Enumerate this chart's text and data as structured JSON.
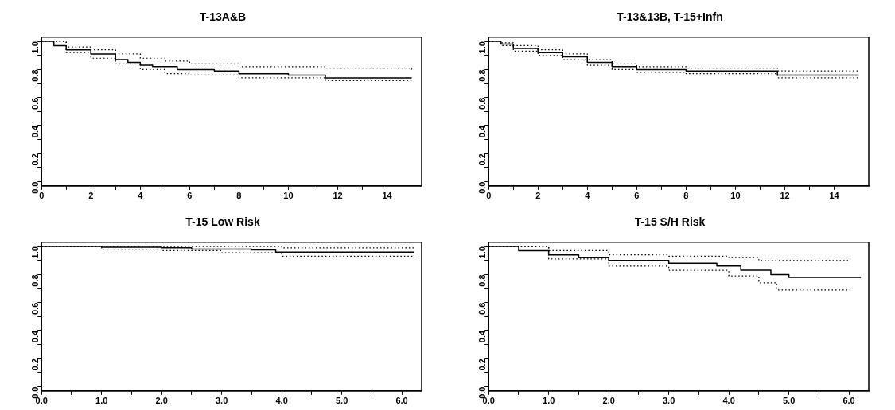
{
  "chart_data": [
    {
      "type": "step",
      "title": "T-13A&B",
      "xlim": [
        0,
        15.4
      ],
      "ylim": [
        -0.03,
        1.03
      ],
      "xticks": [
        0,
        {
          "value": 1,
          "label": null
        },
        2,
        {
          "value": 3,
          "label": null
        },
        4,
        {
          "value": 5,
          "label": null
        },
        6,
        {
          "value": 7,
          "label": null
        },
        8,
        {
          "value": 9,
          "label": null
        },
        10,
        {
          "value": 11,
          "label": null
        },
        12,
        {
          "value": 13,
          "label": null
        },
        14
      ],
      "yticks": [
        {
          "value": 0,
          "label": "0.0"
        },
        {
          "value": 0.1,
          "label": null
        },
        {
          "value": 0.2,
          "label": "0.2"
        },
        {
          "value": 0.3,
          "label": null
        },
        {
          "value": 0.4,
          "label": "0.4"
        },
        {
          "value": 0.5,
          "label": null
        },
        {
          "value": 0.6,
          "label": "0.6"
        },
        {
          "value": 0.7,
          "label": null
        },
        {
          "value": 0.8,
          "label": "0.8"
        },
        {
          "value": 0.9,
          "label": null
        },
        {
          "value": 1,
          "label": "1.0"
        }
      ],
      "series": [
        {
          "color": "#000000",
          "line_style": "solid",
          "x": [
            0,
            0.5,
            1,
            2,
            3,
            3.5,
            4,
            4.5,
            5.5,
            7,
            8,
            10,
            11.5,
            15
          ],
          "values": [
            1,
            0.97,
            0.94,
            0.91,
            0.87,
            0.85,
            0.83,
            0.82,
            0.8,
            0.79,
            0.77,
            0.76,
            0.74,
            0.74
          ]
        },
        {
          "color": "#000000",
          "line_style": "dotted",
          "x": [
            0,
            1,
            2,
            3,
            4,
            5,
            6,
            8,
            11.5,
            15
          ],
          "values": [
            1,
            0.96,
            0.94,
            0.91,
            0.88,
            0.86,
            0.84,
            0.82,
            0.81,
            0.8
          ]
        },
        {
          "color": "#000000",
          "line_style": "dotted",
          "x": [
            0,
            1,
            2,
            3,
            4,
            5,
            6,
            8,
            11.5,
            15
          ],
          "values": [
            1,
            0.92,
            0.88,
            0.84,
            0.8,
            0.77,
            0.76,
            0.74,
            0.72,
            0.71
          ]
        }
      ]
    },
    {
      "type": "step",
      "title": "T-13&13B, T-15+Infn",
      "xlim": [
        0,
        15.4
      ],
      "ylim": [
        -0.03,
        1.03
      ],
      "xticks": [
        0,
        {
          "value": 1,
          "label": null
        },
        2,
        {
          "value": 3,
          "label": null
        },
        4,
        {
          "value": 5,
          "label": null
        },
        6,
        {
          "value": 7,
          "label": null
        },
        8,
        {
          "value": 9,
          "label": null
        },
        10,
        {
          "value": 11,
          "label": null
        },
        12,
        {
          "value": 13,
          "label": null
        },
        14
      ],
      "yticks": [
        {
          "value": 0,
          "label": "0.0"
        },
        {
          "value": 0.1,
          "label": null
        },
        {
          "value": 0.2,
          "label": "0.2"
        },
        {
          "value": 0.3,
          "label": null
        },
        {
          "value": 0.4,
          "label": "0.4"
        },
        {
          "value": 0.5,
          "label": null
        },
        {
          "value": 0.6,
          "label": "0.6"
        },
        {
          "value": 0.7,
          "label": null
        },
        {
          "value": 0.8,
          "label": "0.8"
        },
        {
          "value": 0.9,
          "label": null
        },
        {
          "value": 1,
          "label": "1.0"
        }
      ],
      "series": [
        {
          "color": "#000000",
          "line_style": "solid",
          "x": [
            0,
            0.5,
            1,
            2,
            3,
            4,
            5,
            6,
            8,
            11.7,
            15
          ],
          "values": [
            1,
            0.98,
            0.95,
            0.92,
            0.89,
            0.85,
            0.82,
            0.8,
            0.79,
            0.76,
            0.76
          ]
        },
        {
          "color": "#000000",
          "line_style": "dotted",
          "x": [
            0,
            0.5,
            1,
            2,
            3,
            4,
            5,
            6,
            8,
            11.7,
            15
          ],
          "values": [
            1,
            0.99,
            0.97,
            0.94,
            0.91,
            0.87,
            0.84,
            0.82,
            0.81,
            0.79,
            0.79
          ]
        },
        {
          "color": "#000000",
          "line_style": "dotted",
          "x": [
            0,
            0.5,
            1,
            2,
            3,
            4,
            5,
            6,
            8,
            11.7,
            15
          ],
          "values": [
            1,
            0.97,
            0.93,
            0.9,
            0.87,
            0.83,
            0.8,
            0.78,
            0.77,
            0.74,
            0.74
          ]
        }
      ]
    },
    {
      "type": "step",
      "title": "T-15 Low Risk",
      "xlim": [
        0,
        6.33
      ],
      "ylim": [
        -0.03,
        1.03
      ],
      "xticks": [
        {
          "value": 0,
          "label": "0.0"
        },
        {
          "value": 0.5,
          "label": null
        },
        {
          "value": 1,
          "label": "1.0"
        },
        {
          "value": 1.5,
          "label": null
        },
        {
          "value": 2,
          "label": "2.0"
        },
        {
          "value": 2.5,
          "label": null
        },
        {
          "value": 3,
          "label": "3.0"
        },
        {
          "value": 3.5,
          "label": null
        },
        {
          "value": 4,
          "label": "4.0"
        },
        {
          "value": 4.5,
          "label": null
        },
        {
          "value": 5,
          "label": "5.0"
        },
        {
          "value": 5.5,
          "label": null
        },
        {
          "value": 6,
          "label": "6.0"
        }
      ],
      "yticks": [
        {
          "value": 0,
          "label": "0.0"
        },
        {
          "value": 0.1,
          "label": null
        },
        {
          "value": 0.2,
          "label": "0.2"
        },
        {
          "value": 0.3,
          "label": null
        },
        {
          "value": 0.4,
          "label": "0.4"
        },
        {
          "value": 0.5,
          "label": null
        },
        {
          "value": 0.6,
          "label": "0.6"
        },
        {
          "value": 0.7,
          "label": null
        },
        {
          "value": 0.8,
          "label": "0.8"
        },
        {
          "value": 0.9,
          "label": null
        },
        {
          "value": 1,
          "label": "1.0"
        }
      ],
      "series": [
        {
          "color": "#000000",
          "line_style": "solid",
          "x": [
            0,
            1,
            2,
            2.5,
            3.5,
            3.9,
            6.2
          ],
          "values": [
            1,
            0.995,
            0.99,
            0.98,
            0.975,
            0.96,
            0.96
          ]
        },
        {
          "color": "#000000",
          "line_style": "dotted",
          "x": [
            0,
            2,
            4,
            6.2
          ],
          "values": [
            1,
            1,
            0.99,
            0.99
          ]
        },
        {
          "color": "#000000",
          "line_style": "dotted",
          "x": [
            0,
            1,
            2,
            3,
            4,
            6.2
          ],
          "values": [
            1,
            0.98,
            0.97,
            0.955,
            0.93,
            0.92
          ]
        }
      ]
    },
    {
      "type": "step",
      "title": "T-15 S/H Risk",
      "xlim": [
        0,
        6.33
      ],
      "ylim": [
        -0.03,
        1.03
      ],
      "xticks": [
        {
          "value": 0,
          "label": "0.0"
        },
        {
          "value": 0.5,
          "label": null
        },
        {
          "value": 1,
          "label": "1.0"
        },
        {
          "value": 1.5,
          "label": null
        },
        {
          "value": 2,
          "label": "2.0"
        },
        {
          "value": 2.5,
          "label": null
        },
        {
          "value": 3,
          "label": "3.0"
        },
        {
          "value": 3.5,
          "label": null
        },
        {
          "value": 4,
          "label": "4.0"
        },
        {
          "value": 4.5,
          "label": null
        },
        {
          "value": 5,
          "label": "5.0"
        },
        {
          "value": 5.5,
          "label": null
        },
        {
          "value": 6,
          "label": "6.0"
        }
      ],
      "yticks": [
        {
          "value": 0,
          "label": "0.0"
        },
        {
          "value": 0.1,
          "label": null
        },
        {
          "value": 0.2,
          "label": "0.2"
        },
        {
          "value": 0.3,
          "label": null
        },
        {
          "value": 0.4,
          "label": "0.4"
        },
        {
          "value": 0.5,
          "label": null
        },
        {
          "value": 0.6,
          "label": "0.6"
        },
        {
          "value": 0.7,
          "label": null
        },
        {
          "value": 0.8,
          "label": "0.8"
        },
        {
          "value": 0.9,
          "label": null
        },
        {
          "value": 1,
          "label": "1.0"
        }
      ],
      "series": [
        {
          "color": "#000000",
          "line_style": "solid",
          "x": [
            0,
            0.5,
            1,
            1.5,
            2,
            3,
            3.8,
            4.2,
            4.7,
            5,
            6.2
          ],
          "values": [
            1,
            0.97,
            0.94,
            0.92,
            0.9,
            0.88,
            0.86,
            0.83,
            0.8,
            0.78,
            0.78
          ]
        },
        {
          "color": "#000000",
          "line_style": "dotted",
          "x": [
            0,
            1,
            2,
            3,
            4,
            4.5,
            6
          ],
          "values": [
            1,
            0.97,
            0.94,
            0.93,
            0.92,
            0.9,
            0.89
          ]
        },
        {
          "color": "#000000",
          "line_style": "dotted",
          "x": [
            0,
            1,
            2,
            3,
            4,
            4.5,
            4.8,
            6
          ],
          "values": [
            1,
            0.91,
            0.86,
            0.83,
            0.79,
            0.74,
            0.69,
            0.69
          ]
        }
      ]
    }
  ]
}
